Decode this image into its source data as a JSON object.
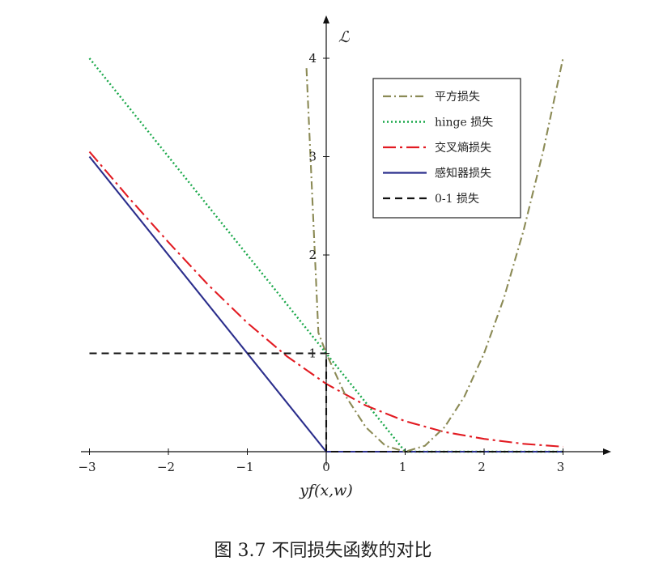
{
  "caption": "图 3.7 不同损失函数的对比",
  "chart_data": {
    "type": "line",
    "xlabel": "yf(x,w)",
    "ylabel": "ℒ",
    "xlim": [
      -3,
      3
    ],
    "ylim": [
      0,
      4
    ],
    "xticks": [
      -3,
      -2,
      -1,
      0,
      1,
      2,
      3
    ],
    "yticks": [
      1,
      2,
      3,
      4
    ],
    "xtick_labels": [
      "−3",
      "−2",
      "−1",
      "0",
      "1",
      "2",
      "3"
    ],
    "ytick_labels": [
      "1",
      "2",
      "3",
      "4"
    ],
    "grid": false,
    "legend_position": "top-right",
    "series": [
      {
        "name": "平方损失",
        "color": "#8b8a55",
        "dash": "dash-dot",
        "x": [
          -0.25,
          -0.1,
          0,
          0.25,
          0.5,
          0.75,
          1,
          1.25,
          1.5,
          1.75,
          2,
          2.25,
          2.5,
          2.75,
          3
        ],
        "y": [
          3.9,
          1.21,
          1,
          0.56,
          0.25,
          0.06,
          0,
          0.06,
          0.25,
          0.56,
          1,
          1.56,
          2.25,
          3.06,
          4
        ]
      },
      {
        "name": "hinge 损失",
        "color": "#1aa84a",
        "dash": "dotted",
        "x": [
          -3,
          1,
          3
        ],
        "y": [
          4,
          0,
          0
        ]
      },
      {
        "name": "交叉熵损失",
        "color": "#e21b22",
        "dash": "long-dash-dot",
        "x": [
          -3,
          -2.5,
          -2,
          -1.5,
          -1,
          -0.5,
          0,
          0.5,
          1,
          1.5,
          2,
          2.5,
          3
        ],
        "y": [
          3.05,
          2.58,
          2.13,
          1.7,
          1.31,
          0.97,
          0.69,
          0.47,
          0.31,
          0.2,
          0.13,
          0.08,
          0.05
        ]
      },
      {
        "name": "感知器损失",
        "color": "#2b2e8c",
        "dash": "solid",
        "x": [
          -3,
          0,
          3
        ],
        "y": [
          3,
          0,
          0
        ]
      },
      {
        "name": "0-1 损失",
        "color": "#111111",
        "dash": "dashed",
        "x": [
          -3,
          0,
          0,
          3
        ],
        "y": [
          1,
          1,
          0,
          0
        ]
      }
    ]
  }
}
